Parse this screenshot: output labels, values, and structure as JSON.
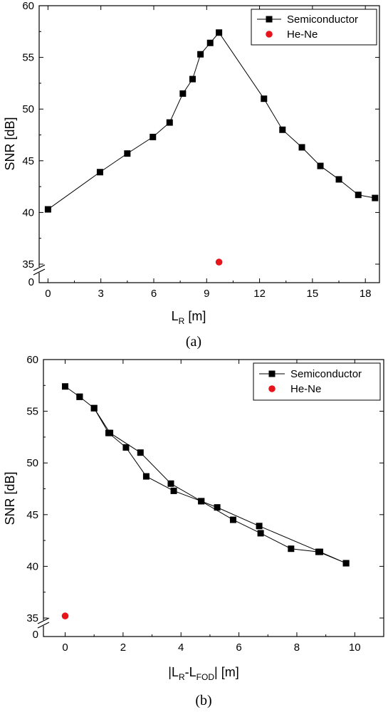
{
  "chart_data": [
    {
      "type": "scatter",
      "caption": "(a)",
      "xlabel_main": "L",
      "xlabel_sub": "R",
      "xlabel_tail": " [m]",
      "ylabel": "SNR [dB]",
      "xlim": [
        -0.5,
        18.8
      ],
      "ylim": [
        35,
        60
      ],
      "xticks": [
        "0",
        "3",
        "6",
        "9",
        "12",
        "15",
        "18"
      ],
      "yticks": [
        "35",
        "40",
        "45",
        "50",
        "55",
        "60"
      ],
      "ybreak_label": "0",
      "legend_position": "top-right",
      "series": [
        {
          "name": "Semiconductor",
          "style": "line-square",
          "color": "#000000",
          "x": [
            0,
            2.95,
            4.5,
            5.95,
            6.9,
            7.65,
            8.2,
            8.65,
            9.2,
            9.7,
            12.25,
            13.3,
            14.4,
            15.45,
            16.5,
            17.6,
            18.55
          ],
          "y": [
            40.3,
            43.9,
            45.7,
            47.3,
            48.7,
            51.5,
            52.9,
            55.3,
            56.4,
            57.4,
            51.0,
            48.0,
            46.3,
            44.5,
            43.2,
            41.7,
            41.4
          ]
        },
        {
          "name": "He-Ne",
          "style": "dot",
          "color": "#e8141c",
          "x": [
            9.7
          ],
          "y": [
            35.2
          ]
        }
      ]
    },
    {
      "type": "scatter",
      "caption": "(b)",
      "xlabel_pre": "|L",
      "xlabel_sub1": "R",
      "xlabel_mid": "-L",
      "xlabel_sub2": "FOD",
      "xlabel_tail": "| [m]",
      "ylabel": "SNR [dB]",
      "xlim": [
        -0.75,
        11.0
      ],
      "ylim": [
        35,
        60
      ],
      "xticks": [
        "0",
        "2",
        "4",
        "6",
        "8",
        "10"
      ],
      "yticks": [
        "35",
        "40",
        "45",
        "50",
        "55",
        "60"
      ],
      "ybreak_label": "0",
      "legend_position": "top-right",
      "series": [
        {
          "name": "Semiconductor",
          "style": "line-square",
          "color": "#000000",
          "x": [
            9.7,
            8.75,
            7.8,
            6.75,
            5.8,
            4.7,
            3.75,
            2.8,
            2.1,
            1.5,
            1.0,
            0.5,
            0.0,
            0.5,
            1.0,
            1.55,
            2.6,
            3.65,
            4.7,
            5.25,
            6.7,
            8.8,
            9.7
          ],
          "y": [
            40.3,
            41.4,
            41.7,
            43.2,
            44.5,
            46.3,
            47.3,
            48.7,
            51.5,
            52.9,
            55.3,
            56.4,
            57.4,
            56.4,
            55.3,
            52.9,
            51.0,
            48.0,
            46.3,
            45.7,
            43.9,
            41.4,
            40.3
          ]
        },
        {
          "name": "He-Ne",
          "style": "dot",
          "color": "#e8141c",
          "x": [
            0.0
          ],
          "y": [
            35.2
          ]
        }
      ]
    }
  ]
}
